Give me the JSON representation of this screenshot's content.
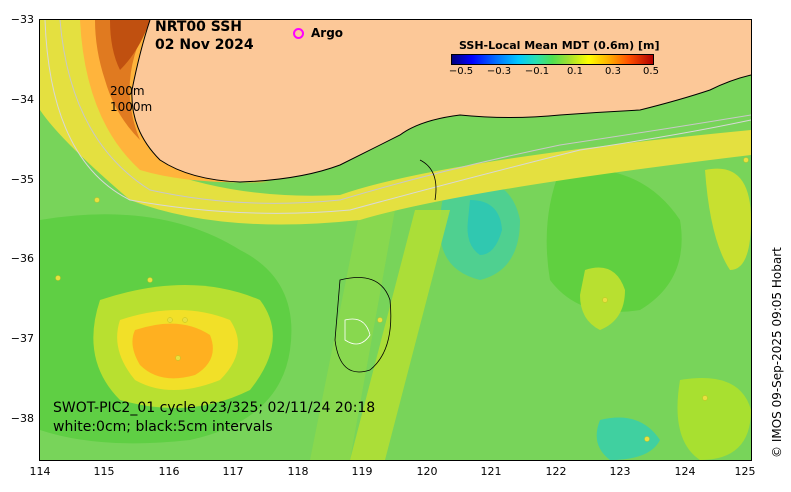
{
  "title": {
    "line1": "NRT00 SSH",
    "line2": "02 Nov 2024"
  },
  "legend": {
    "argo_label": "Argo",
    "argo_color": "#ff00ff"
  },
  "depth_labels": {
    "shallow": "200m",
    "deep": "1000m"
  },
  "colorbar": {
    "title": "SSH-Local Mean MDT (0.6m) [m]",
    "ticks": [
      "−0.5",
      "−0.3",
      "−0.1",
      "0.1",
      "0.3",
      "0.5"
    ],
    "range": [
      -0.5,
      0.5
    ]
  },
  "footer": {
    "line1": "SWOT-PIC2_01 cycle 023/325; 02/11/24 20:18",
    "line2": "white:0cm; black:5cm intervals"
  },
  "credit": "© IMOS 09-Sep-2025 09:05 Hobart",
  "axes": {
    "y_ticks": [
      "−33",
      "−34",
      "−35",
      "−36",
      "−37",
      "−38"
    ],
    "x_ticks": [
      "114",
      "115",
      "116",
      "117",
      "118",
      "119",
      "120",
      "121",
      "122",
      "123",
      "124",
      "125"
    ],
    "lon_range": [
      114,
      125
    ],
    "lat_range": [
      -38.5,
      -33
    ]
  },
  "colors": {
    "land": "#fcc898",
    "ocean_base": "#7cd65a",
    "frame": "#000000"
  }
}
